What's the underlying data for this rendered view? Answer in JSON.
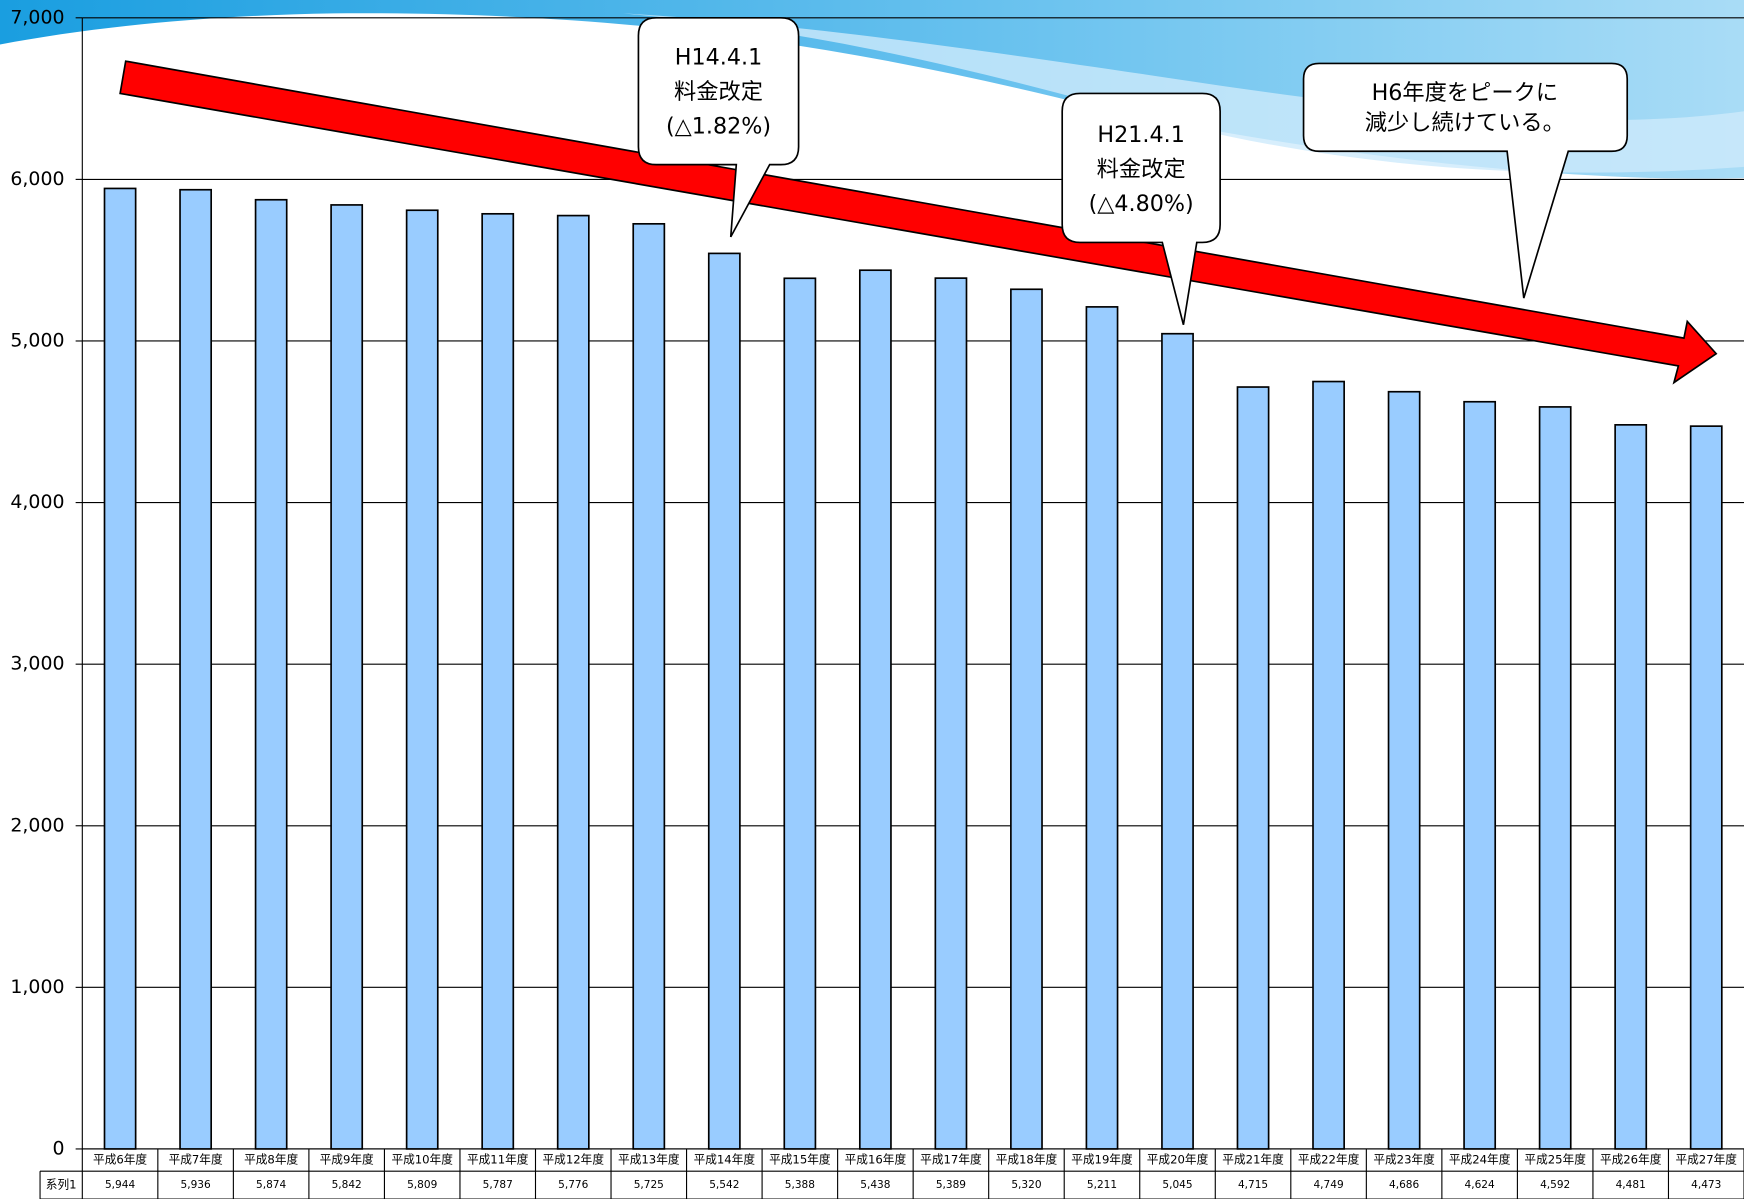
{
  "chart_data": {
    "type": "bar",
    "categories": [
      "平成6年度",
      "平成7年度",
      "平成8年度",
      "平成9年度",
      "平成10年度",
      "平成11年度",
      "平成12年度",
      "平成13年度",
      "平成14年度",
      "平成15年度",
      "平成16年度",
      "平成17年度",
      "平成18年度",
      "平成19年度",
      "平成20年度",
      "平成21年度",
      "平成22年度",
      "平成23年度",
      "平成24年度",
      "平成25年度",
      "平成26年度",
      "平成27年度"
    ],
    "series": [
      {
        "name": "系列1",
        "color": "#99ccff",
        "values": [
          5944,
          5936,
          5874,
          5842,
          5809,
          5787,
          5776,
          5725,
          5542,
          5388,
          5438,
          5389,
          5320,
          5211,
          5045,
          4715,
          4749,
          4686,
          4624,
          4592,
          4481,
          4473
        ],
        "value_labels": [
          "5,944",
          "5,936",
          "5,874",
          "5,842",
          "5,809",
          "5,787",
          "5,776",
          "5,725",
          "5,542",
          "5,388",
          "5,438",
          "5,389",
          "5,320",
          "5,211",
          "5,045",
          "4,715",
          "4,749",
          "4,686",
          "4,624",
          "4,592",
          "4,481",
          "4,473"
        ]
      }
    ],
    "ylim": [
      0,
      7000
    ],
    "yticks": [
      0,
      {
        "value": 1000,
        "label": "1,000"
      },
      {
        "value": 2000,
        "label": "2,000"
      },
      {
        "value": 3000,
        "label": "3,000"
      },
      {
        "value": 4000,
        "label": "4,000"
      },
      {
        "value": 5000,
        "label": "5,000"
      },
      {
        "value": 6000,
        "label": "6,000"
      },
      {
        "value": 7000,
        "label": "7,000"
      }
    ],
    "grid": true,
    "annotations": [
      {
        "lines": [
          "H14.4.1",
          "料金改定",
          "(△1.82%)"
        ]
      },
      {
        "lines": [
          "H21.4.1",
          "料金改定",
          "(△4.80%)"
        ]
      },
      {
        "lines": [
          "H6年度をピークに",
          "減少し続けている。"
        ]
      }
    ]
  }
}
